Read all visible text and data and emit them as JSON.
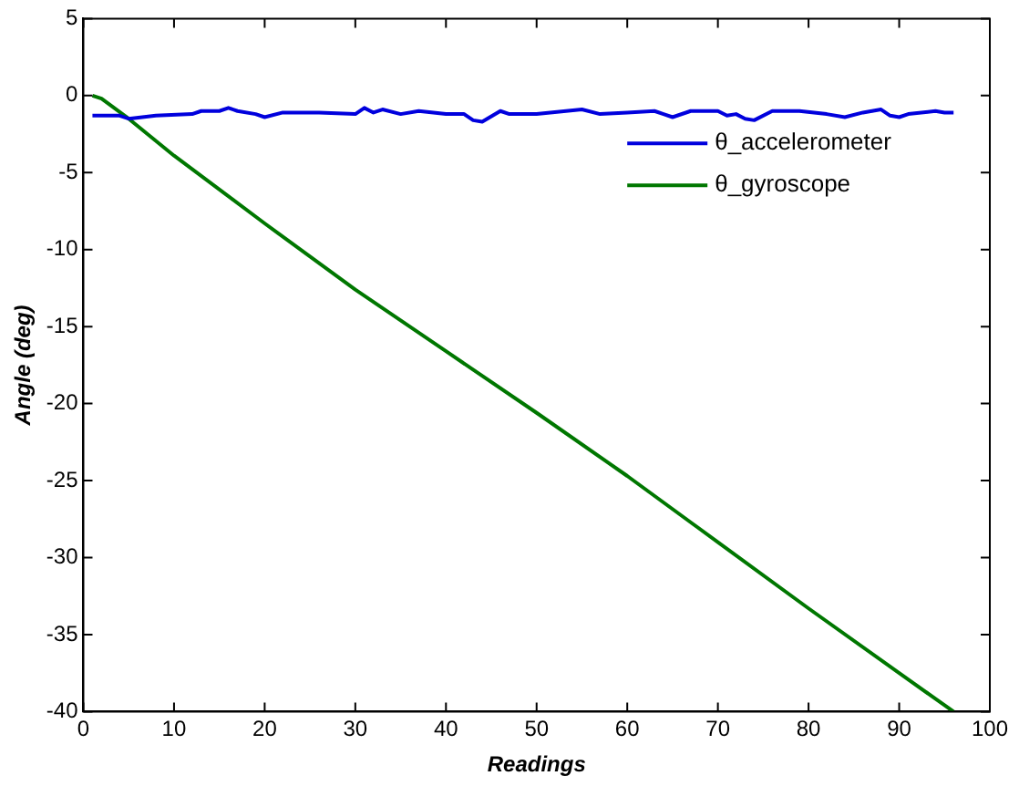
{
  "chart_data": {
    "type": "line",
    "xlabel": "Readings",
    "ylabel": "Angle (deg)",
    "xlim": [
      0,
      100
    ],
    "xticks": [
      0,
      10,
      20,
      30,
      40,
      50,
      60,
      70,
      80,
      90,
      100
    ],
    "ylim": [
      -40,
      5
    ],
    "yticks": [
      -40,
      -35,
      -30,
      -25,
      -20,
      -15,
      -10,
      -5,
      0,
      5
    ],
    "grid": false,
    "legend": "top right",
    "marker": "none",
    "line_style": "solid",
    "series": [
      {
        "name": "θ_accelerometer",
        "color": "#0000dd",
        "x": [
          1,
          4,
          5,
          8,
          12,
          13,
          15,
          16,
          17,
          19,
          20,
          22,
          26,
          30,
          31,
          32,
          33,
          35,
          37,
          40,
          42,
          43,
          44,
          46,
          47,
          50,
          55,
          57,
          60,
          63,
          64,
          65,
          67,
          70,
          71,
          72,
          73,
          74,
          76,
          79,
          82,
          84,
          86,
          88,
          89,
          90,
          91,
          94,
          95,
          96
        ],
        "values": [
          -1.3,
          -1.3,
          -1.5,
          -1.3,
          -1.2,
          -1.0,
          -1.0,
          -0.8,
          -1.0,
          -1.2,
          -1.4,
          -1.1,
          -1.1,
          -1.2,
          -0.8,
          -1.1,
          -0.9,
          -1.2,
          -1.0,
          -1.2,
          -1.2,
          -1.6,
          -1.7,
          -1.0,
          -1.2,
          -1.2,
          -0.9,
          -1.2,
          -1.1,
          -1.0,
          -1.2,
          -1.4,
          -1.0,
          -1.0,
          -1.3,
          -1.2,
          -1.5,
          -1.6,
          -1.0,
          -1.0,
          -1.2,
          -1.4,
          -1.1,
          -0.9,
          -1.3,
          -1.4,
          -1.2,
          -1.0,
          -1.1,
          -1.1
        ]
      },
      {
        "name": "θ_gyroscope",
        "color": "#007700",
        "x": [
          1,
          2,
          5,
          10,
          20,
          30,
          40,
          50,
          60,
          70,
          80,
          90,
          96
        ],
        "values": [
          0,
          -0.2,
          -1.5,
          -3.9,
          -8.3,
          -12.6,
          -16.6,
          -20.6,
          -24.7,
          -29,
          -33.3,
          -37.5,
          -40
        ]
      }
    ]
  }
}
